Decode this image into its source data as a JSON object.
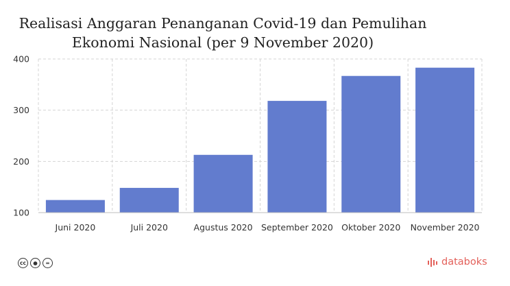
{
  "title": {
    "line1": "Realisasi Anggaran Penanganan Covid-19 dan Pemulihan",
    "line2": "Ekonomi Nasional (per 9 November 2020)"
  },
  "chart_data": {
    "type": "bar",
    "categories": [
      "Juni 2020",
      "Juli 2020",
      "Agustus 2020",
      "September 2020",
      "Oktober 2020",
      "November 2020"
    ],
    "values": [
      124.6,
      148.3,
      212.8,
      318.2,
      366.9,
      383.0
    ],
    "ylim": [
      100,
      400
    ],
    "yticks": [
      100,
      200,
      300,
      400
    ],
    "grid": true,
    "legend": "none",
    "bar_color": "#627cce",
    "grid_color": "#d4d4d4"
  },
  "footer": {
    "license_icons": [
      "cc-icon",
      "by-icon",
      "nd-icon"
    ],
    "brand": "databoks",
    "brand_color": "#e3605a"
  }
}
